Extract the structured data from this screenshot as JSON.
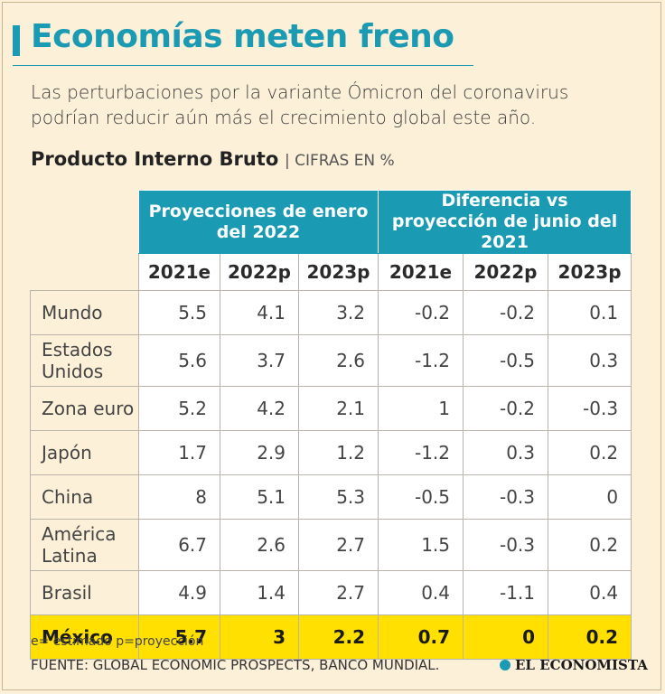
{
  "header": {
    "title": "Economías meten freno",
    "subtitle": "Las perturbaciones por la variante Ómicron del coronavirus podrían reducir aún más el crecimiento global este año."
  },
  "table": {
    "title": "Producto Interno Bruto",
    "unit": "| CIFRAS EN %",
    "groups": [
      "Proyecciones de enero del 2022",
      "Diferencia vs proyección de junio del 2021"
    ],
    "columns": [
      "2021e",
      "2022p",
      "2023p",
      "2021e",
      "2022p",
      "2023p"
    ],
    "rows": [
      [
        "Mundo",
        "5.5",
        "4.1",
        "3.2",
        "-0.2",
        "-0.2",
        "0.1"
      ],
      [
        "Estados Unidos",
        "5.6",
        "3.7",
        "2.6",
        "-1.2",
        "-0.5",
        "0.3"
      ],
      [
        "Zona euro",
        "5.2",
        "4.2",
        "2.1",
        "1",
        "-0.2",
        "-0.3"
      ],
      [
        "Japón",
        "1.7",
        "2.9",
        "1.2",
        "-1.2",
        "0.3",
        "0.2"
      ],
      [
        "China",
        "8",
        "5.1",
        "5.3",
        "-0.5",
        "-0.3",
        "0"
      ],
      [
        "América Latina",
        "6.7",
        "2.6",
        "2.7",
        "1.5",
        "-0.3",
        "0.2"
      ],
      [
        "Brasil",
        "4.9",
        "1.4",
        "2.7",
        "0.4",
        "-1.1",
        "0.4"
      ],
      [
        "México",
        "5.7",
        "3",
        "2.2",
        "0.7",
        "0",
        "0.2"
      ]
    ]
  },
  "footer": {
    "note": "e= estimado p=proyección",
    "source": "FUENTE: GLOBAL ECONOMIC PROSPECTS, BANCO MUNDIAL.",
    "brand": "EL ECONOMISTA"
  }
}
